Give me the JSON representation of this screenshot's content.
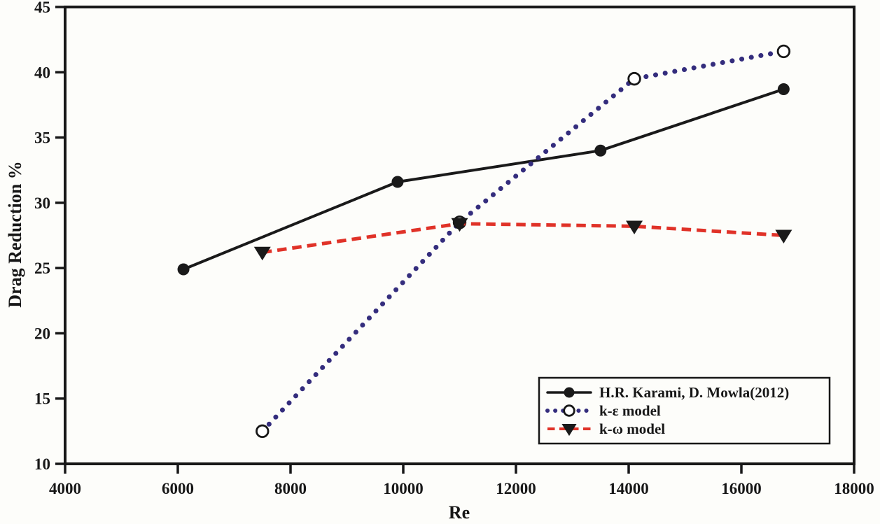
{
  "figure": {
    "background_color": "#fdfdfa",
    "axis_color": "#171717"
  },
  "chart_data": {
    "type": "line",
    "title": "",
    "xlabel": "Re",
    "ylabel": "Drag Reduction %",
    "xlim": [
      4000,
      18000
    ],
    "ylim": [
      10,
      45
    ],
    "x_ticks": [
      4000,
      6000,
      8000,
      10000,
      12000,
      14000,
      16000,
      18000
    ],
    "y_ticks": [
      10,
      15,
      20,
      25,
      30,
      35,
      40,
      45
    ],
    "grid": false,
    "legend_position": "lower-right",
    "series": [
      {
        "name": "H.R. Karami, D. Mowla(2012)",
        "color": "#1a1a1a",
        "line_style": "solid",
        "marker": "filled-circle",
        "marker_color": "#1a1a1a",
        "points": [
          [
            6100,
            24.9
          ],
          [
            9900,
            31.6
          ],
          [
            13500,
            34.0
          ],
          [
            16750,
            38.7
          ]
        ]
      },
      {
        "name": "k-ε model",
        "color": "#342d7d",
        "line_style": "dotted",
        "marker": "open-circle",
        "marker_color": "#ffffff",
        "points": [
          [
            7500,
            12.5
          ],
          [
            11000,
            28.5
          ],
          [
            14100,
            39.5
          ],
          [
            16750,
            41.6
          ]
        ]
      },
      {
        "name": "k-ω model",
        "color": "#e03228",
        "line_style": "dashed",
        "marker": "filled-triangle-down",
        "marker_color": "#1a1a1a",
        "points": [
          [
            7500,
            26.2
          ],
          [
            11000,
            28.4
          ],
          [
            14100,
            28.2
          ],
          [
            16750,
            27.5
          ]
        ]
      }
    ]
  }
}
